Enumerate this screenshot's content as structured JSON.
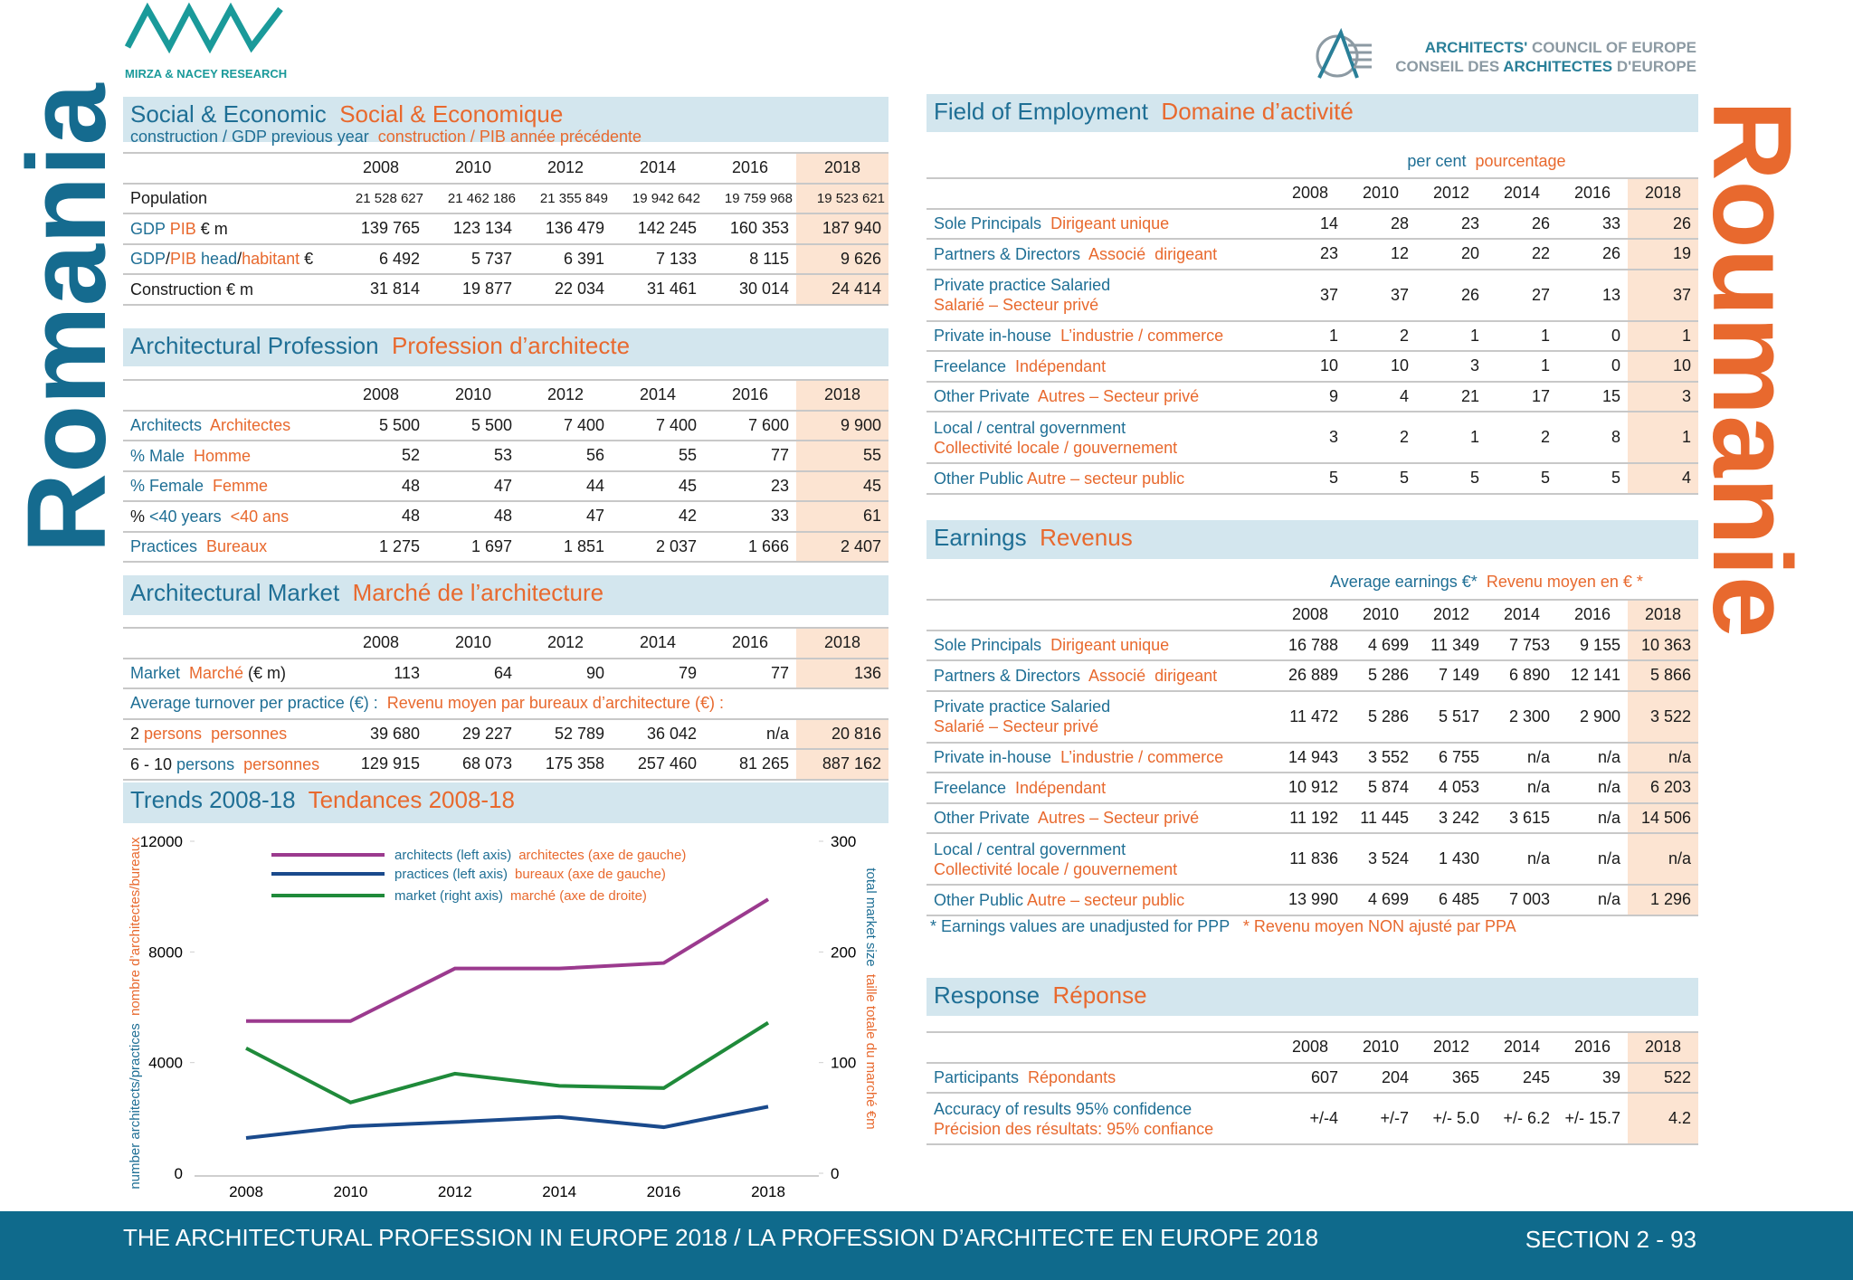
{
  "header": {
    "logo_left": "MIRZA & NACEY RESEARCH",
    "logo_right": [
      [
        [
          "ARCHITECTS'",
          "#2a7f98"
        ],
        [
          " COUNCIL OF EUROPE",
          "#8c9aa3"
        ]
      ],
      [
        [
          "CONSEIL DES ",
          "#8c9aa3"
        ],
        [
          "ARCHITECTES",
          "#2a7f98"
        ],
        [
          " D'EUROPE",
          "#8c9aa3"
        ]
      ]
    ]
  },
  "country_en": "Romania",
  "country_fr": "Roumanie",
  "sections": [
    {
      "title": [
        [
          "Social & Economic",
          "#1f6f95"
        ],
        [
          "  Social & Economique",
          "#e8692e"
        ]
      ],
      "subtitle": [
        [
          "construction / GDP previous year",
          "#1f6f95"
        ],
        [
          "  construction / PIB année précédente",
          "#e8692e"
        ]
      ],
      "columns": [
        "2008",
        "2010",
        "2012",
        "2014",
        "2016",
        "2018"
      ],
      "rows": [
        {
          "label": [
            [
              [
                "Population",
                "#1a1a1a"
              ]
            ]
          ],
          "values": [
            "21 528 627",
            "21 462 186",
            "21 355 849",
            "19 942 642",
            "19 759 968",
            "19 523 621"
          ]
        },
        {
          "label": [
            [
              [
                "GDP",
                "#1f6f95"
              ],
              [
                " PIB",
                "#e8692e"
              ],
              [
                " € m",
                "#1a1a1a"
              ]
            ]
          ],
          "values": [
            "139 765",
            "123 134",
            "136 479",
            "142 245",
            "160 353",
            "187 940"
          ]
        },
        {
          "label": [
            [
              [
                "GDP",
                "#1f6f95"
              ],
              [
                "/",
                "#1a1a1a"
              ],
              [
                "PIB",
                "#e8692e"
              ],
              [
                " head",
                "#1f6f95"
              ],
              [
                "/",
                "#1a1a1a"
              ],
              [
                "habitant",
                "#e8692e"
              ],
              [
                " €",
                "#1a1a1a"
              ]
            ]
          ],
          "values": [
            "6 492",
            "5 737",
            "6 391",
            "7 133",
            "8 115",
            "9 626"
          ]
        },
        {
          "label": [
            [
              [
                "Construction € m",
                "#1a1a1a"
              ]
            ]
          ],
          "values": [
            "31 814",
            "19 877",
            "22 034",
            "31 461",
            "30 014",
            "24 414"
          ]
        }
      ]
    },
    {
      "title": [
        [
          "Architectural Profession",
          "#1f6f95"
        ],
        [
          "  Profession d’architecte",
          "#e8692e"
        ]
      ],
      "columns": [
        "2008",
        "2010",
        "2012",
        "2014",
        "2016",
        "2018"
      ],
      "rows": [
        {
          "label": [
            [
              [
                "Architects",
                "#1f6f95"
              ],
              [
                "  Architectes",
                "#e8692e"
              ]
            ]
          ],
          "values": [
            "5 500",
            "5 500",
            "7 400",
            "7 400",
            "7 600",
            "9 900"
          ]
        },
        {
          "label": [
            [
              [
                "% Male",
                "#1f6f95"
              ],
              [
                "  Homme",
                "#e8692e"
              ]
            ]
          ],
          "values": [
            "52",
            "53",
            "56",
            "55",
            "77",
            "55"
          ]
        },
        {
          "label": [
            [
              [
                "% Female",
                "#1f6f95"
              ],
              [
                "  Femme",
                "#e8692e"
              ]
            ]
          ],
          "values": [
            "48",
            "47",
            "44",
            "45",
            "23",
            "45"
          ]
        },
        {
          "label": [
            [
              [
                "% ",
                "#1a1a1a"
              ],
              [
                "<40 years",
                "#1f6f95"
              ],
              [
                "  <40 ans",
                "#e8692e"
              ]
            ]
          ],
          "values": [
            "48",
            "48",
            "47",
            "42",
            "33",
            "61"
          ]
        },
        {
          "label": [
            [
              [
                "Practices",
                "#1f6f95"
              ],
              [
                "  Bureaux",
                "#e8692e"
              ]
            ]
          ],
          "values": [
            "1 275",
            "1 697",
            "1 851",
            "2 037",
            "1 666",
            "2 407"
          ]
        }
      ]
    },
    {
      "title": [
        [
          "Architectural Market",
          "#1f6f95"
        ],
        [
          "  Marché de l’architecture",
          "#e8692e"
        ]
      ],
      "columns": [
        "2008",
        "2010",
        "2012",
        "2014",
        "2016",
        "2018"
      ],
      "rows": [
        {
          "label": [
            [
              [
                "Market",
                "#1f6f95"
              ],
              [
                "  Marché",
                "#e8692e"
              ],
              [
                " (€ m)",
                "#1a1a1a"
              ]
            ]
          ],
          "values": [
            "113",
            "64",
            "90",
            "79",
            "77",
            "136"
          ]
        },
        {
          "span": [
            [
              "Average turnover per practice (€) :",
              "#1f6f95"
            ],
            [
              "  Revenu moyen par bureaux d’architecture (€) :",
              "#e8692e"
            ]
          ]
        },
        {
          "label": [
            [
              [
                "2 ",
                "#1a1a1a"
              ],
              [
                "persons",
                "#e8692e"
              ],
              [
                "  personnes",
                "#e8692e"
              ]
            ]
          ],
          "values": [
            "39 680",
            "29 227",
            "52 789",
            "36 042",
            "n/a",
            "20 816"
          ]
        },
        {
          "label": [
            [
              [
                "6 - 10 ",
                "#1a1a1a"
              ],
              [
                "persons",
                "#1f6f95"
              ],
              [
                "  personnes",
                "#e8692e"
              ]
            ]
          ],
          "values": [
            "129 915",
            "68 073",
            "175 358",
            "257 460",
            "81 265",
            "887 162"
          ]
        }
      ]
    },
    {
      "title": [
        [
          "Field of Employment",
          "#1f6f95"
        ],
        [
          "  Domaine d’activité",
          "#e8692e"
        ]
      ],
      "caption": [
        [
          "per cent",
          "#1f6f95"
        ],
        [
          "  pourcentage",
          "#e8692e"
        ]
      ],
      "columns": [
        "2008",
        "2010",
        "2012",
        "2014",
        "2016",
        "2018"
      ],
      "rows": [
        {
          "label": [
            [
              [
                "Sole Principals",
                "#1f6f95"
              ],
              [
                "  Dirigeant unique",
                "#e8692e"
              ]
            ]
          ],
          "values": [
            "14",
            "28",
            "23",
            "26",
            "33",
            "26"
          ]
        },
        {
          "label": [
            [
              [
                "Partners & Directors",
                "#1f6f95"
              ],
              [
                "  Associé  dirigeant",
                "#e8692e"
              ]
            ]
          ],
          "values": [
            "23",
            "12",
            "20",
            "22",
            "26",
            "19"
          ]
        },
        {
          "label": [
            [
              [
                "Private practice Salaried",
                "#1f6f95"
              ]
            ],
            [
              [
                "Salarié – Secteur privé",
                "#e8692e"
              ]
            ]
          ],
          "values": [
            "37",
            "37",
            "26",
            "27",
            "13",
            "37"
          ]
        },
        {
          "label": [
            [
              [
                "Private in-house",
                "#1f6f95"
              ],
              [
                "  L’industrie / commerce",
                "#e8692e"
              ]
            ]
          ],
          "values": [
            "1",
            "2",
            "1",
            "1",
            "0",
            "1"
          ]
        },
        {
          "label": [
            [
              [
                "Freelance",
                "#1f6f95"
              ],
              [
                "  Indépendant",
                "#e8692e"
              ]
            ]
          ],
          "values": [
            "10",
            "10",
            "3",
            "1",
            "0",
            "10"
          ]
        },
        {
          "label": [
            [
              [
                "Other Private",
                "#1f6f95"
              ],
              [
                "  Autres – Secteur privé",
                "#e8692e"
              ]
            ]
          ],
          "values": [
            "9",
            "4",
            "21",
            "17",
            "15",
            "3"
          ]
        },
        {
          "label": [
            [
              [
                "Local / central government",
                "#1f6f95"
              ]
            ],
            [
              [
                "Collectivité locale / gouvernement",
                "#e8692e"
              ]
            ]
          ],
          "values": [
            "3",
            "2",
            "1",
            "2",
            "8",
            "1"
          ]
        },
        {
          "label": [
            [
              [
                "Other Public",
                "#1f6f95"
              ],
              [
                " Autre – secteur public",
                "#e8692e"
              ]
            ]
          ],
          "values": [
            "5",
            "5",
            "5",
            "5",
            "5",
            "4"
          ]
        }
      ]
    },
    {
      "title": [
        [
          "Earnings",
          "#1f6f95"
        ],
        [
          "  Revenus",
          "#e8692e"
        ]
      ],
      "caption": [
        [
          "Average earnings €*",
          "#1f6f95"
        ],
        [
          "  Revenu moyen en € *",
          "#e8692e"
        ]
      ],
      "columns": [
        "2008",
        "2010",
        "2012",
        "2014",
        "2016",
        "2018"
      ],
      "rows": [
        {
          "label": [
            [
              [
                "Sole Principals",
                "#1f6f95"
              ],
              [
                "  Dirigeant unique",
                "#e8692e"
              ]
            ]
          ],
          "values": [
            "16 788",
            "4 699",
            "11 349",
            "7 753",
            "9 155",
            "10 363"
          ]
        },
        {
          "label": [
            [
              [
                "Partners & Directors",
                "#1f6f95"
              ],
              [
                "  Associé  dirigeant",
                "#e8692e"
              ]
            ]
          ],
          "values": [
            "26 889",
            "5 286",
            "7 149",
            "6 890",
            "12 141",
            "5 866"
          ]
        },
        {
          "label": [
            [
              [
                "Private practice Salaried",
                "#1f6f95"
              ]
            ],
            [
              [
                "Salarié – Secteur privé",
                "#e8692e"
              ]
            ]
          ],
          "values": [
            "11 472",
            "5 286",
            "5 517",
            "2 300",
            "2 900",
            "3 522"
          ]
        },
        {
          "label": [
            [
              [
                "Private in-house",
                "#1f6f95"
              ],
              [
                "  L’industrie / commerce",
                "#e8692e"
              ]
            ]
          ],
          "values": [
            "14 943",
            "3 552",
            "6 755",
            "n/a",
            "n/a",
            "n/a"
          ]
        },
        {
          "label": [
            [
              [
                "Freelance",
                "#1f6f95"
              ],
              [
                "  Indépendant",
                "#e8692e"
              ]
            ]
          ],
          "values": [
            "10 912",
            "5 874",
            "4 053",
            "n/a",
            "n/a",
            "6 203"
          ]
        },
        {
          "label": [
            [
              [
                "Other Private",
                "#1f6f95"
              ],
              [
                "  Autres – Secteur privé",
                "#e8692e"
              ]
            ]
          ],
          "values": [
            "11 192",
            "11 445",
            "3 242",
            "3 615",
            "n/a",
            "14 506"
          ]
        },
        {
          "label": [
            [
              [
                "Local / central government",
                "#1f6f95"
              ]
            ],
            [
              [
                "Collectivité locale / gouvernement",
                "#e8692e"
              ]
            ]
          ],
          "values": [
            "11 836",
            "3 524",
            "1 430",
            "n/a",
            "n/a",
            "n/a"
          ]
        },
        {
          "label": [
            [
              [
                "Other Public",
                "#1f6f95"
              ],
              [
                " Autre – secteur public",
                "#e8692e"
              ]
            ]
          ],
          "values": [
            "13 990",
            "4 699",
            "6 485",
            "7 003",
            "n/a",
            "1 296"
          ]
        }
      ],
      "note": [
        [
          "* Earnings values are unadjusted for PPP",
          "#1f6f95"
        ],
        [
          "   * Revenu moyen NON ajusté par PPA",
          "#e8692e"
        ]
      ]
    },
    {
      "title": [
        [
          "Response",
          "#1f6f95"
        ],
        [
          "  Réponse",
          "#e8692e"
        ]
      ],
      "columns": [
        "2008",
        "2010",
        "2012",
        "2014",
        "2016",
        "2018"
      ],
      "rows": [
        {
          "label": [
            [
              [
                "Participants",
                "#1f6f95"
              ],
              [
                "  Répondants",
                "#e8692e"
              ]
            ]
          ],
          "values": [
            "607",
            "204",
            "365",
            "245",
            "39",
            "522"
          ]
        },
        {
          "label": [
            [
              [
                "Accuracy of results 95% confidence",
                "#1f6f95"
              ]
            ],
            [
              [
                "Précision des résultats: 95% confiance",
                "#e8692e"
              ]
            ]
          ],
          "values": [
            "+/-4",
            "+/-7",
            "+/- 5.0",
            "+/- 6.2",
            "+/- 15.7",
            "4.2"
          ]
        }
      ]
    }
  ],
  "trends_title": [
    [
      "Trends 2008-18",
      "#1f6f95"
    ],
    [
      "  Tendances 2008-18",
      "#e8692e"
    ]
  ],
  "chart_data": {
    "type": "line",
    "categories": [
      "2008",
      "2010",
      "2012",
      "2014",
      "2016",
      "2018"
    ],
    "series": [
      {
        "name": "architects (left axis)",
        "name_fr": "architectes (axe de gauche)",
        "color": "#9b3a8e",
        "axis": "y",
        "values": [
          5500,
          5500,
          7400,
          7400,
          7600,
          9900
        ]
      },
      {
        "name": "practices (left axis)",
        "name_fr": "bureaux (axe de gauche)",
        "color": "#1a4a8c",
        "axis": "y",
        "values": [
          1275,
          1697,
          1851,
          2037,
          1666,
          2407
        ]
      },
      {
        "name": "market (right axis)",
        "name_fr": "marché (axe de droite)",
        "color": "#1f8a3a",
        "axis": "y2",
        "values": [
          113,
          64,
          90,
          79,
          77,
          136
        ]
      }
    ],
    "ylim": [
      0,
      12000
    ],
    "yticks": [
      0,
      4000,
      8000,
      12000
    ],
    "y2lim": [
      0,
      300
    ],
    "y2ticks": [
      0,
      100,
      200,
      300
    ],
    "ylabel": [
      [
        "number architects/practices",
        "#1f6f95"
      ],
      [
        "  nombre d’architectes/bureaux",
        "#e8692e"
      ]
    ],
    "y2label": [
      [
        "total market size",
        "#1f6f95"
      ],
      [
        "  taille totale du marché €m",
        "#e8692e"
      ]
    ]
  },
  "footer": {
    "title": "THE ARCHITECTURAL PROFESSION IN EUROPE 2018 / LA PROFESSION D’ARCHITECTE EN EUROPE 2018",
    "section": "SECTION 2 - 93"
  }
}
